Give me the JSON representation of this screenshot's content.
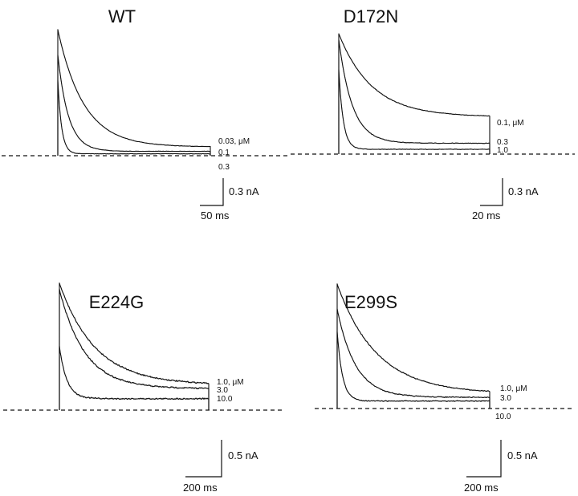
{
  "figure": {
    "colors": {
      "trace": "#111111",
      "fit": "#777777",
      "background": "#ffffff"
    }
  },
  "chart_data": [
    {
      "type": "line",
      "title": "WT",
      "concentration_unit": "μM",
      "series": [
        {
          "name": "0.03, μM",
          "label": "0.03, μM",
          "peak": 1.0,
          "plateau": 0.07,
          "tau_fraction": 0.17
        },
        {
          "name": "0.1",
          "label": "0.1",
          "peak": 0.8,
          "plateau": 0.035,
          "tau_fraction": 0.07
        },
        {
          "name": "0.3",
          "label": "0.3",
          "peak": 0.6,
          "plateau": 0.015,
          "tau_fraction": 0.025
        }
      ],
      "scale_bar": {
        "current_label": "0.3 nA",
        "time_label": "50 ms"
      },
      "baseline": "dashed"
    },
    {
      "type": "line",
      "title": "D172N",
      "concentration_unit": "μM",
      "series": [
        {
          "name": "0.1, μM",
          "label": "0.1, μM",
          "peak": 1.0,
          "plateau": 0.31,
          "tau_fraction": 0.22
        },
        {
          "name": "0.3",
          "label": "0.3",
          "peak": 0.95,
          "plateau": 0.09,
          "tau_fraction": 0.09
        },
        {
          "name": "1.0",
          "label": "1.0",
          "peak": 0.7,
          "plateau": 0.04,
          "tau_fraction": 0.03
        }
      ],
      "scale_bar": {
        "current_label": "0.3 nA",
        "time_label": "20 ms"
      },
      "baseline": "dashed"
    },
    {
      "type": "line",
      "title": "E224G",
      "concentration_unit": "μM",
      "series": [
        {
          "name": "1.0, μM",
          "label": "1.0, μM",
          "peak": 1.0,
          "plateau": 0.2,
          "tau_fraction": 0.24
        },
        {
          "name": "3.0",
          "label": "3.0",
          "peak": 0.95,
          "plateau": 0.17,
          "tau_fraction": 0.17
        },
        {
          "name": "10.0",
          "label": "10.0",
          "peak": 0.5,
          "plateau": 0.09,
          "tau_fraction": 0.05
        }
      ],
      "scale_bar": {
        "current_label": "0.5 nA",
        "time_label": "200 ms"
      },
      "baseline": "dashed"
    },
    {
      "type": "line",
      "title": "E299S",
      "concentration_unit": "μM",
      "series": [
        {
          "name": "1.0, μM",
          "label": "1.0, μM",
          "peak": 1.0,
          "plateau": 0.12,
          "tau_fraction": 0.26
        },
        {
          "name": "3.0",
          "label": "3.0",
          "peak": 0.8,
          "plateau": 0.09,
          "tau_fraction": 0.12
        },
        {
          "name": "10.0",
          "label": "10.0",
          "peak": 0.62,
          "plateau": 0.06,
          "tau_fraction": 0.035
        }
      ],
      "scale_bar": {
        "current_label": "0.5 nA",
        "time_label": "200 ms"
      },
      "baseline": "dashed"
    }
  ]
}
